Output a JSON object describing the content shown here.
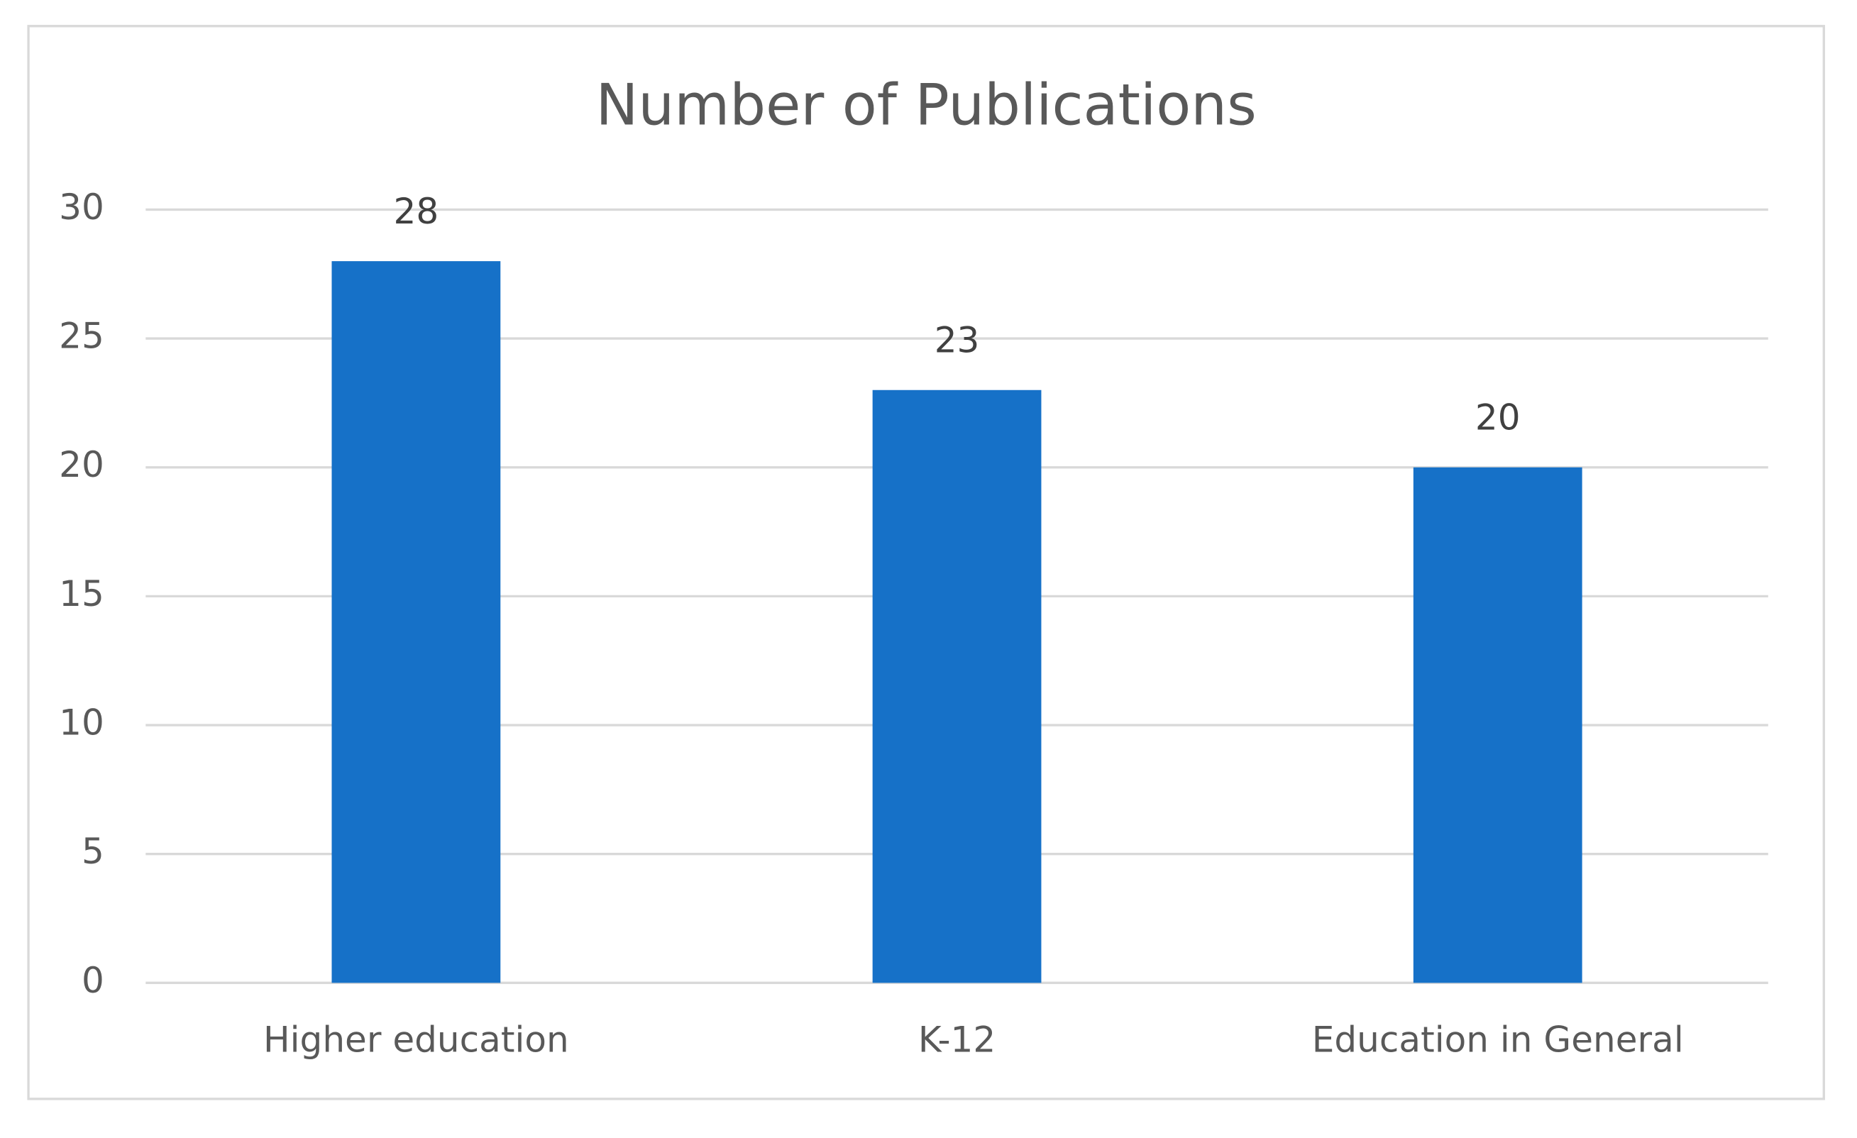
{
  "chart_data": {
    "type": "bar",
    "title": "Number of Publications",
    "categories": [
      "Higher education",
      "K-12",
      "Education in General"
    ],
    "values": [
      28,
      23,
      20
    ],
    "color": "#1671c8",
    "ylim": [
      0,
      30
    ],
    "yticks": [
      0,
      5,
      10,
      15,
      20,
      25,
      30
    ],
    "grid": true,
    "data_labels": true
  }
}
